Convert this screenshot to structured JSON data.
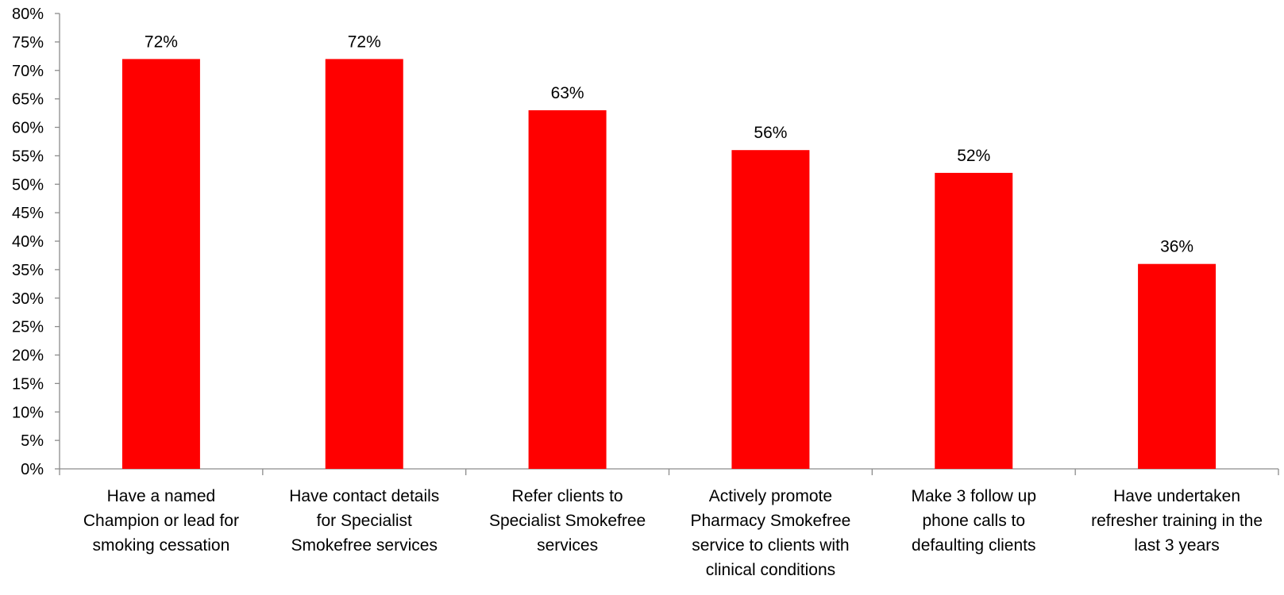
{
  "chart_data": {
    "type": "bar",
    "categories": [
      [
        "Have a named",
        "Champion or lead for",
        "smoking cessation"
      ],
      [
        "Have contact details",
        "for Specialist",
        "Smokefree services"
      ],
      [
        "Refer clients to",
        "Specialist Smokefree",
        "services"
      ],
      [
        "Actively promote",
        "Pharmacy Smokefree",
        "service to clients with",
        "clinical conditions"
      ],
      [
        "Make 3 follow up",
        "phone calls to",
        "defaulting clients"
      ],
      [
        "Have undertaken",
        "refresher training in the",
        "last 3 years"
      ]
    ],
    "values": [
      72,
      72,
      63,
      56,
      52,
      36
    ],
    "data_labels": [
      "72%",
      "72%",
      "63%",
      "56%",
      "52%",
      "36%"
    ],
    "yticks": [
      "0%",
      "5%",
      "10%",
      "15%",
      "20%",
      "25%",
      "30%",
      "35%",
      "40%",
      "45%",
      "50%",
      "55%",
      "60%",
      "65%",
      "70%",
      "75%",
      "80%"
    ],
    "ylim": [
      0,
      80
    ],
    "ystep": 5,
    "bar_color": "#ff0000",
    "axis_color": "#8c8c8c",
    "grid": false,
    "legend": "none",
    "title": "",
    "xlabel": "",
    "ylabel": ""
  }
}
